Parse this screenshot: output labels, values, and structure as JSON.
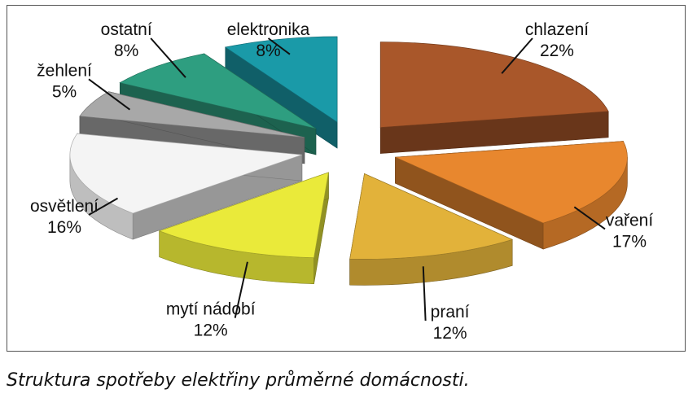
{
  "caption": "Struktura spotřeby elektřiny průměrné domácnosti.",
  "chart_data": {
    "type": "pie",
    "title": "",
    "style": "3d-exploded",
    "slices": [
      {
        "label": "chlazení",
        "value_label": "22%",
        "value": 22,
        "color": "#a9572a"
      },
      {
        "label": "vaření",
        "value_label": "17%",
        "value": 17,
        "color": "#e8872e"
      },
      {
        "label": "praní",
        "value_label": "12%",
        "value": 12,
        "color": "#e2b23a"
      },
      {
        "label": "mytí nádobí",
        "value_label": "12%",
        "value": 12,
        "color": "#eaea3a"
      },
      {
        "label": "osvětlení",
        "value_label": "16%",
        "value": 16,
        "color": "#f4f4f4"
      },
      {
        "label": "žehlení",
        "value_label": "5%",
        "value": 5,
        "color": "#a8a8a8"
      },
      {
        "label": "ostatní",
        "value_label": "8%",
        "value": 8,
        "color": "#2e9e80"
      },
      {
        "label": "elektronika",
        "value_label": "8%",
        "value": 8,
        "color": "#1a9aa8"
      }
    ]
  }
}
